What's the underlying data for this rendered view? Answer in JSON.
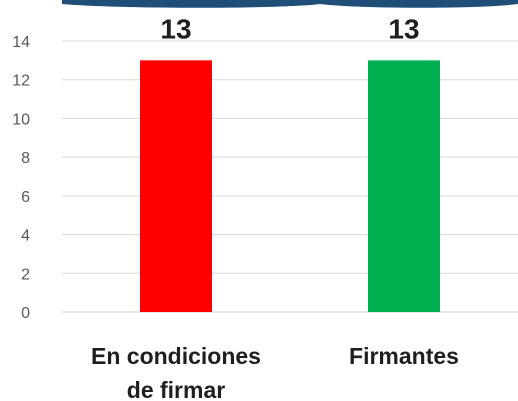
{
  "chart_data": {
    "type": "bar",
    "categories": [
      "En condiciones de firmar",
      "Firmantes"
    ],
    "category_lines": [
      [
        "En condiciones",
        "de firmar"
      ],
      [
        "Firmantes"
      ]
    ],
    "values": [
      13,
      13
    ],
    "colors": [
      "#ff0000",
      "#00b050"
    ],
    "ylim": [
      0,
      14
    ],
    "yticks": [
      0,
      2,
      4,
      6,
      8,
      10,
      12,
      14
    ],
    "grid": true,
    "legend": "none",
    "title": "",
    "xlabel": "",
    "ylabel": ""
  }
}
